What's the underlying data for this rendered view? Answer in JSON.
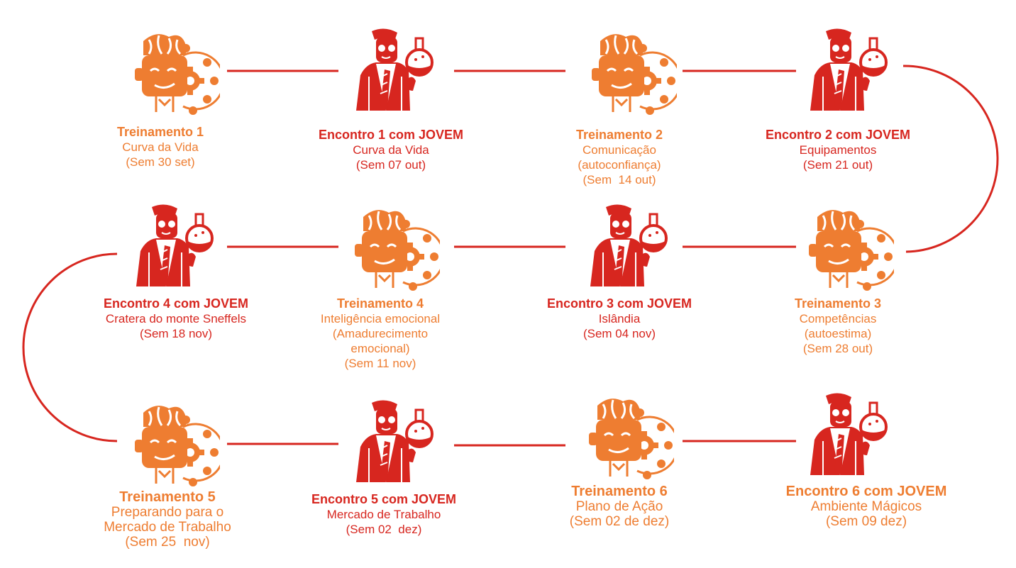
{
  "colors": {
    "training": "#ee7d31",
    "meeting": "#d7261f",
    "connector": "#d7261f"
  },
  "nodes": [
    {
      "id": "n1",
      "kind": "training",
      "icon": "brain-gear-icon",
      "title": "Treinamento 1",
      "lines": [
        "Curva da Vida",
        "(Sem 30 set)"
      ]
    },
    {
      "id": "n2",
      "kind": "meeting",
      "icon": "scientist-icon",
      "title": "Encontro 1 com JOVEM",
      "lines": [
        "Curva da Vida",
        "(Sem 07 out)"
      ]
    },
    {
      "id": "n3",
      "kind": "training",
      "icon": "brain-gear-icon",
      "title": "Treinamento 2",
      "lines": [
        "Comunicação",
        "(autoconfiança)",
        "(Sem  14 out)"
      ]
    },
    {
      "id": "n4",
      "kind": "meeting",
      "icon": "scientist-icon",
      "title": "Encontro 2 com JOVEM",
      "lines": [
        "Equipamentos",
        "(Sem 21 out)"
      ]
    },
    {
      "id": "n5",
      "kind": "training",
      "icon": "brain-gear-icon",
      "title": "Treinamento 3",
      "lines": [
        "Competências",
        "(autoestima)",
        "(Sem 28 out)"
      ]
    },
    {
      "id": "n6",
      "kind": "meeting",
      "icon": "scientist-icon",
      "title": "Encontro 3 com JOVEM",
      "lines": [
        "Islândia",
        "(Sem 04 nov)"
      ]
    },
    {
      "id": "n7",
      "kind": "training",
      "icon": "brain-gear-icon",
      "title": "Treinamento 4",
      "lines": [
        "Inteligência emocional",
        "(Amadurecimento",
        "emocional)",
        "(Sem 11 nov)"
      ]
    },
    {
      "id": "n8",
      "kind": "meeting",
      "icon": "scientist-icon",
      "title": "Encontro 4 com JOVEM",
      "lines": [
        "Cratera do monte Sneffels",
        "(Sem 18 nov)"
      ]
    },
    {
      "id": "n9",
      "kind": "training",
      "icon": "brain-gear-icon",
      "title": "Treinamento 5",
      "lines": [
        "Preparando para o",
        "Mercado de Trabalho",
        "(Sem 25  nov)"
      ]
    },
    {
      "id": "n10",
      "kind": "meeting",
      "icon": "scientist-icon",
      "title": "Encontro 5 com JOVEM",
      "lines": [
        "Mercado de Trabalho",
        "(Sem 02  dez)"
      ]
    },
    {
      "id": "n11",
      "kind": "training",
      "icon": "brain-gear-icon",
      "title": "Treinamento 6",
      "lines": [
        "Plano de Ação",
        "(Sem 02 de dez)"
      ]
    },
    {
      "id": "n12",
      "kind": "meeting",
      "icon": "scientist-icon",
      "title": "Encontro 6 com JOVEM",
      "lines": [
        "Ambiente Mágicos",
        "(Sem 09 dez)"
      ]
    }
  ]
}
